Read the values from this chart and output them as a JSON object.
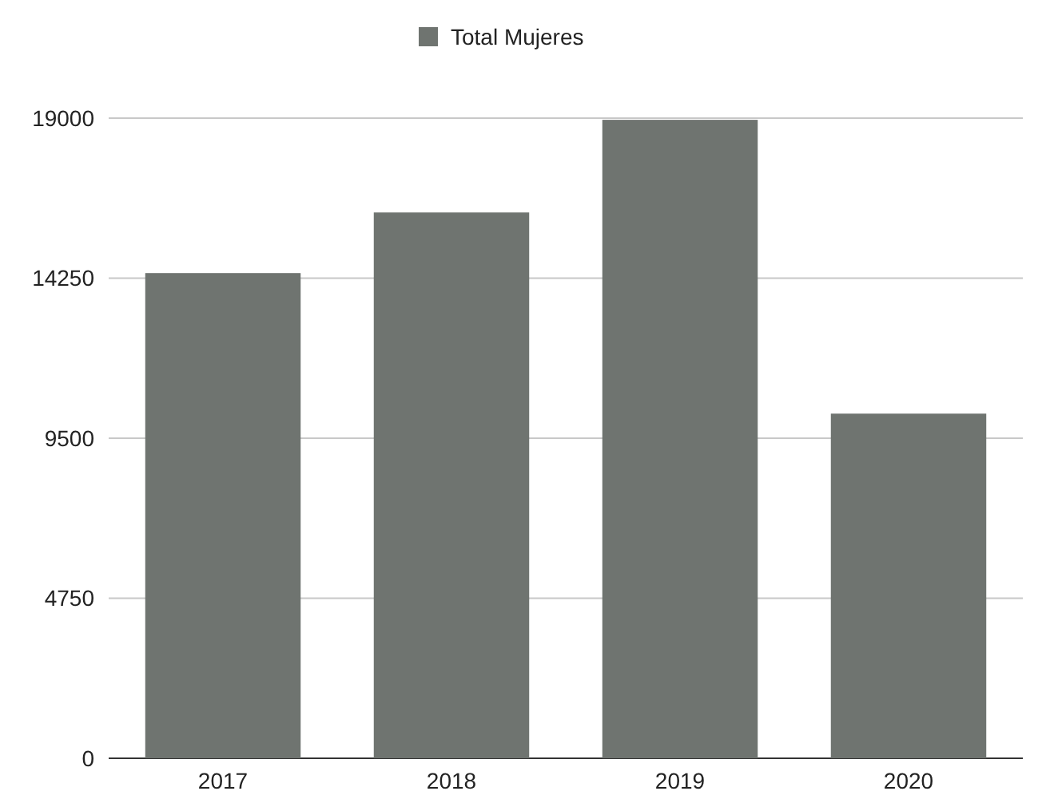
{
  "chart_data": {
    "type": "bar",
    "categories": [
      "2017",
      "2018",
      "2019",
      "2020"
    ],
    "series": [
      {
        "name": "Total Mujeres",
        "color": "#6f7470",
        "values": [
          14400,
          16200,
          18950,
          10230
        ]
      }
    ],
    "ylim": [
      0,
      19000
    ],
    "yticks": [
      0,
      4750,
      9500,
      14250,
      19000
    ],
    "grid": "y",
    "legend": "top"
  }
}
